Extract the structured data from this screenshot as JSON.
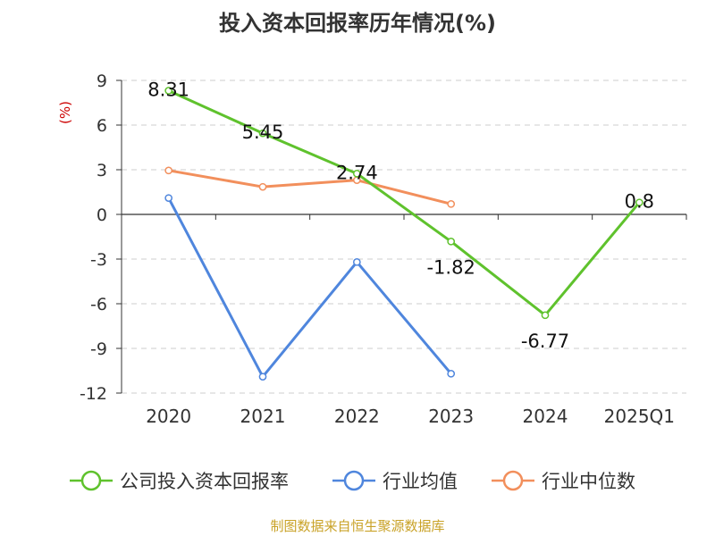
{
  "colors": {
    "company": "#5fc22d",
    "industry_avg": "#4f86dd",
    "industry_median": "#f28f5c",
    "grid": "#cccccc",
    "axis": "#333333",
    "unit": "#cc0000",
    "source": "#c9a227"
  },
  "chart_data": {
    "type": "line",
    "title": "投入资本回报率历年情况(%)",
    "ylabel": "(%)",
    "categories": [
      "2020",
      "2021",
      "2022",
      "2023",
      "2024",
      "2025Q1"
    ],
    "ylim": [
      -12,
      9
    ],
    "yticks": [
      9,
      6,
      3,
      0,
      -3,
      -6,
      -9,
      -12
    ],
    "grid": true,
    "legend_position": "bottom",
    "series": [
      {
        "name": "公司投入资本回报率",
        "color_key": "company",
        "values": [
          8.31,
          5.45,
          2.74,
          -1.82,
          -6.77,
          0.8
        ],
        "labels": [
          "8.31",
          "5.45",
          "2.74",
          "-1.82",
          "-6.77",
          "0.8"
        ]
      },
      {
        "name": "行业均值",
        "color_key": "industry_avg",
        "values": [
          1.1,
          -10.9,
          -3.2,
          -10.7,
          null,
          null
        ]
      },
      {
        "name": "行业中位数",
        "color_key": "industry_median",
        "values": [
          2.95,
          1.85,
          2.3,
          0.7,
          null,
          null
        ]
      }
    ]
  },
  "source": "制图数据来自恒生聚源数据库"
}
